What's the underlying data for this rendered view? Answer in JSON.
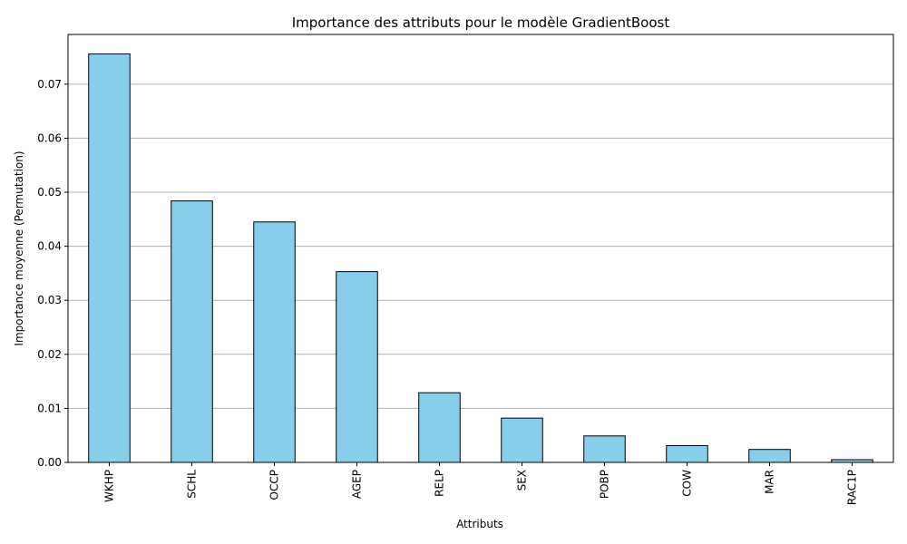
{
  "chart_data": {
    "type": "bar",
    "title": "Importance des attributs pour le modèle GradientBoost",
    "xlabel": "Attributs",
    "ylabel": "Importance moyenne (Permutation)",
    "categories": [
      "WKHP",
      "SCHL",
      "OCCP",
      "AGEP",
      "RELP",
      "SEX",
      "POBP",
      "COW",
      "MAR",
      "RAC1P"
    ],
    "values": [
      0.0756,
      0.0484,
      0.0445,
      0.0353,
      0.0129,
      0.0082,
      0.0049,
      0.0031,
      0.0024,
      0.0005
    ],
    "ylim": [
      0,
      0.0792
    ],
    "yticks": [
      0.0,
      0.01,
      0.02,
      0.03,
      0.04,
      0.05,
      0.06,
      0.07
    ],
    "ytick_labels": [
      "0.00",
      "0.01",
      "0.02",
      "0.03",
      "0.04",
      "0.05",
      "0.06",
      "0.07"
    ],
    "grid": "y",
    "bar_color": "#87CEEB",
    "edge_color": "#000000",
    "grid_color": "#b0b0b0"
  }
}
